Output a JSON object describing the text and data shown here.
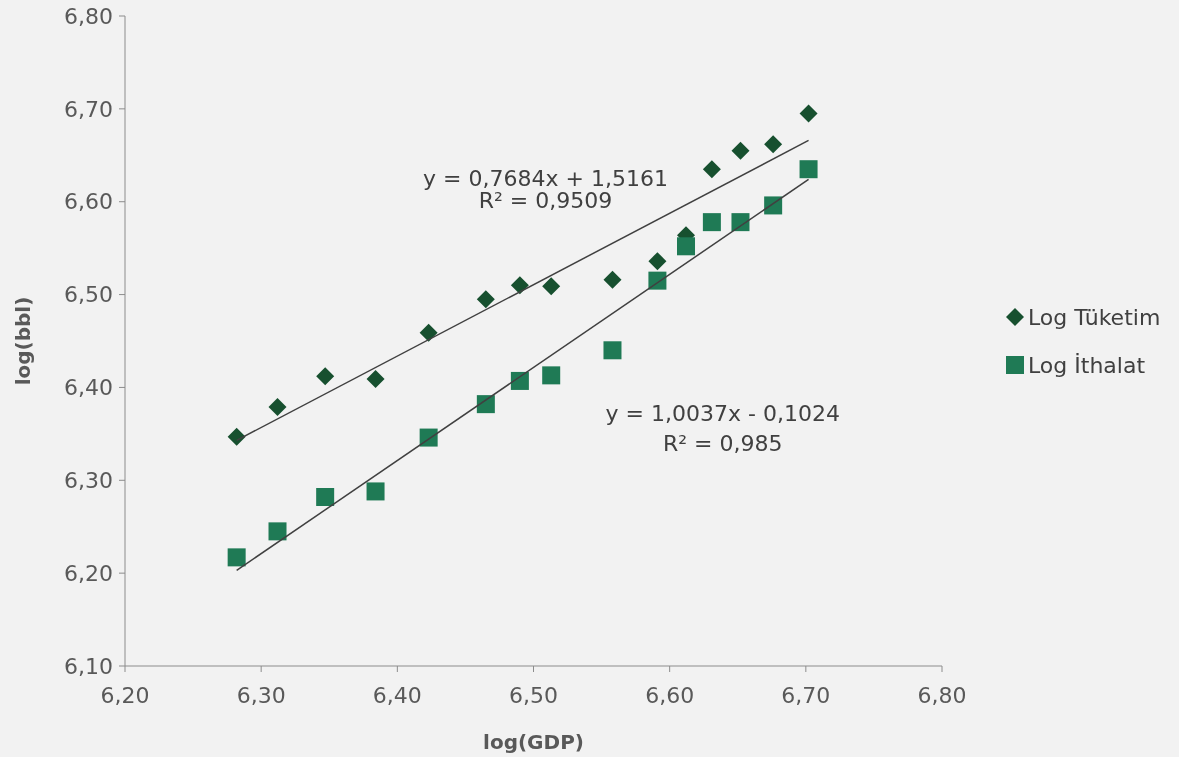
{
  "chart_data": {
    "type": "scatter",
    "xlabel": "log(GDP)",
    "ylabel": "log(bbl)",
    "xlim": [
      6.2,
      6.8
    ],
    "xticks": [
      {
        "value": 6.2,
        "label": "6,20"
      },
      {
        "value": 6.3,
        "label": "6,30"
      },
      {
        "value": 6.4,
        "label": "6,40"
      },
      {
        "value": 6.5,
        "label": "6,50"
      },
      {
        "value": 6.6,
        "label": "6,60"
      },
      {
        "value": 6.7,
        "label": "6,70"
      },
      {
        "value": 6.8,
        "label": "6,80"
      }
    ],
    "ylim": [
      6.1,
      6.8
    ],
    "yticks": [
      {
        "value": 6.1,
        "label": "6,10"
      },
      {
        "value": 6.2,
        "label": "6,20"
      },
      {
        "value": 6.3,
        "label": "6,30"
      },
      {
        "value": 6.4,
        "label": "6,40"
      },
      {
        "value": 6.5,
        "label": "6,50"
      },
      {
        "value": 6.6,
        "label": "6,60"
      },
      {
        "value": 6.7,
        "label": "6,70"
      },
      {
        "value": 6.8,
        "label": "6,80"
      }
    ],
    "grid": false,
    "legend": "right",
    "series": [
      {
        "name": "Log Tüketim",
        "color": "#17502f",
        "marker": "diamond",
        "x": [
          6.282,
          6.312,
          6.347,
          6.384,
          6.423,
          6.465,
          6.49,
          6.513,
          6.558,
          6.591,
          6.612,
          6.631,
          6.652,
          6.676,
          6.702
        ],
        "values": [
          6.347,
          6.379,
          6.412,
          6.409,
          6.459,
          6.495,
          6.51,
          6.509,
          6.516,
          6.536,
          6.564,
          6.635,
          6.655,
          6.662,
          6.695
        ]
      },
      {
        "name": "Log İthalat",
        "color": "#1f7a55",
        "marker": "square",
        "x": [
          6.282,
          6.312,
          6.347,
          6.384,
          6.423,
          6.465,
          6.49,
          6.513,
          6.558,
          6.591,
          6.612,
          6.631,
          6.652,
          6.676,
          6.702
        ],
        "values": [
          6.217,
          6.245,
          6.282,
          6.288,
          6.346,
          6.382,
          6.407,
          6.413,
          6.44,
          6.515,
          6.552,
          6.578,
          6.578,
          6.596,
          6.635
        ]
      },
      {
        "type": "line",
        "color": "#404040",
        "marker": "none",
        "x": [
          6.282,
          6.702
        ],
        "values": [
          6.343,
          6.666
        ]
      },
      {
        "type": "line",
        "color": "#404040",
        "marker": "none",
        "x": [
          6.282,
          6.702
        ],
        "values": [
          6.203,
          6.624
        ]
      }
    ],
    "annotations": [
      "y = 0,7684x + 1,5161",
      "R² = 0,9509",
      "y = 1,0037x - 0,1024",
      "R² = 0,985"
    ]
  }
}
